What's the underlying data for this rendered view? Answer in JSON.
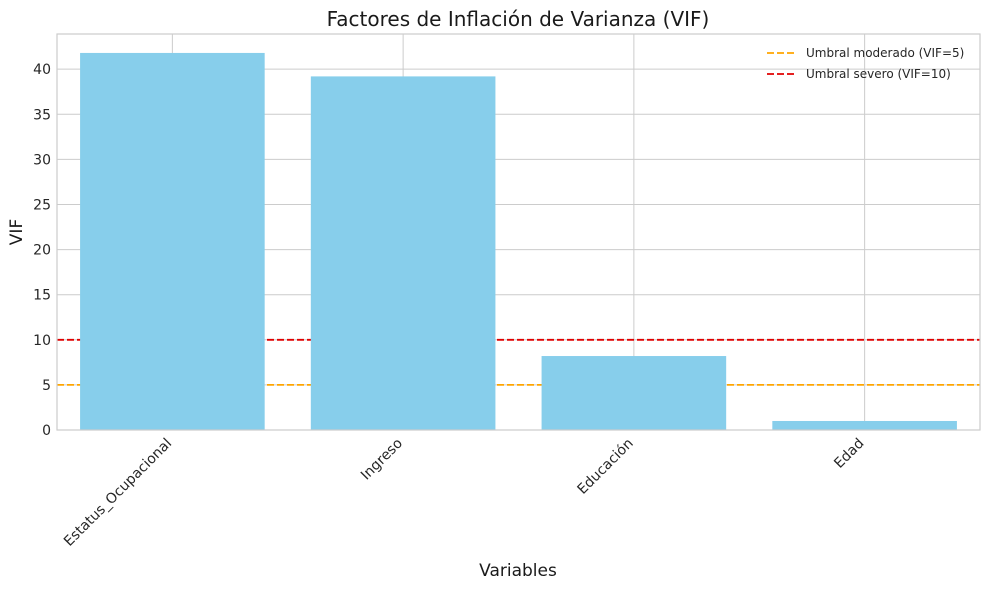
{
  "chart_data": {
    "type": "bar",
    "title": "Factores de Inflación de Varianza (VIF)",
    "xlabel": "Variables",
    "ylabel": "VIF",
    "categories": [
      "Estatus_Ocupacional",
      "Ingreso",
      "Educación",
      "Edad"
    ],
    "values": [
      41.8,
      39.2,
      8.2,
      1.0
    ],
    "ylim": [
      0,
      43.9
    ],
    "yticks": [
      0,
      5,
      10,
      15,
      20,
      25,
      30,
      35,
      40
    ],
    "bar_color": "#87CEEB",
    "grid": true,
    "x_tick_rotation_deg": -45,
    "reference_lines": [
      {
        "label": "Umbral moderado (VIF=5)",
        "value": 5,
        "color": "#FFA500",
        "style": "dashed"
      },
      {
        "label": "Umbral severo (VIF=10)",
        "value": 10,
        "color": "#E00000",
        "style": "dashed"
      }
    ],
    "legend_position": "top-right"
  }
}
